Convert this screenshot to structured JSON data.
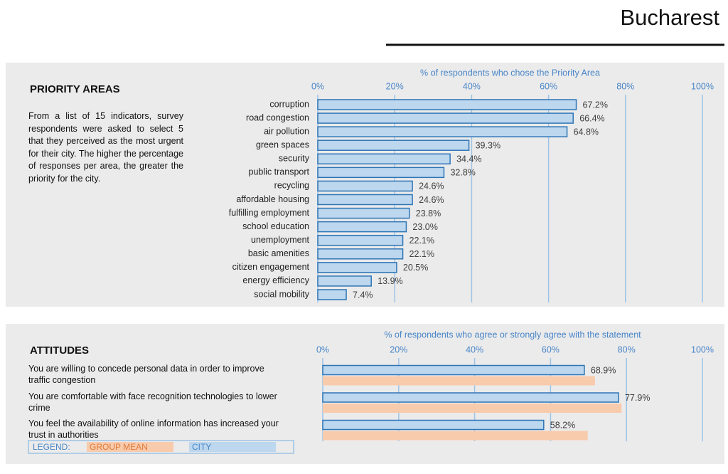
{
  "title": "Bucharest",
  "chart_data": [
    {
      "type": "bar",
      "orientation": "horizontal",
      "title": "PRIORITY AREAS",
      "description": "From a list of 15 indicators, survey respondents were asked to select 5 that they perceived as the most urgent for their city. The higher the percentage of responses per area, the greater the priority for the city.",
      "x_label": "% of respondents who chose the Priority Area",
      "categories": [
        "corruption",
        "road congestion",
        "air pollution",
        "green spaces",
        "security",
        "public transport",
        "recycling",
        "affordable housing",
        "fulfilling employment",
        "school education",
        "unemployment",
        "basic amenities",
        "citizen engagement",
        "energy efficiency",
        "social mobility"
      ],
      "values": [
        67.2,
        66.4,
        64.8,
        39.3,
        34.4,
        32.8,
        24.6,
        24.6,
        23.8,
        23.0,
        22.1,
        22.1,
        20.5,
        13.9,
        7.4
      ],
      "value_labels": [
        "67.2%",
        "66.4%",
        "64.8%",
        "39.3%",
        "34.4%",
        "32.8%",
        "24.6%",
        "24.6%",
        "23.8%",
        "23.0%",
        "22.1%",
        "22.1%",
        "20.5%",
        "13.9%",
        "7.4%"
      ],
      "color": "#bdd7ee",
      "edge_color": "#2e75b6",
      "xlim": [
        0,
        100
      ],
      "xticks": [
        {
          "value": 0,
          "label": "0%"
        },
        {
          "value": 20,
          "label": "20%"
        },
        {
          "value": 40,
          "label": "40%"
        },
        {
          "value": 60,
          "label": "60%"
        },
        {
          "value": 80,
          "label": "80%"
        },
        {
          "value": 100,
          "label": "100%"
        }
      ],
      "grid": true
    },
    {
      "type": "bar",
      "orientation": "horizontal",
      "title": "ATTITUDES",
      "x_label": "% of respondents who agree or strongly agree with the statement",
      "categories": [
        "You are willing to concede personal data in order to improve traffic congestion",
        "You are comfortable with face recognition technologies to lower crime",
        "You feel the availability of online information has increased your trust in authorities"
      ],
      "series": [
        {
          "name": "GROUP MEAN",
          "color": "#f8cbad",
          "text_color": "#e07b39",
          "values": [
            71.7,
            78.7,
            69.8
          ]
        },
        {
          "name": "CITY",
          "color": "#bdd7ee",
          "edge_color": "#2e75b6",
          "text_color": "#4a86c8",
          "values": [
            68.9,
            77.9,
            58.2
          ],
          "value_labels": [
            "68.9%",
            "77.9%",
            "58.2%"
          ]
        }
      ],
      "legend_title": "LEGEND:",
      "xlim": [
        0,
        100
      ],
      "xticks": [
        {
          "value": 0,
          "label": "0%"
        },
        {
          "value": 20,
          "label": "20%"
        },
        {
          "value": 40,
          "label": "40%"
        },
        {
          "value": 60,
          "label": "60%"
        },
        {
          "value": 80,
          "label": "80%"
        },
        {
          "value": 100,
          "label": "100%"
        }
      ],
      "grid": true
    }
  ]
}
